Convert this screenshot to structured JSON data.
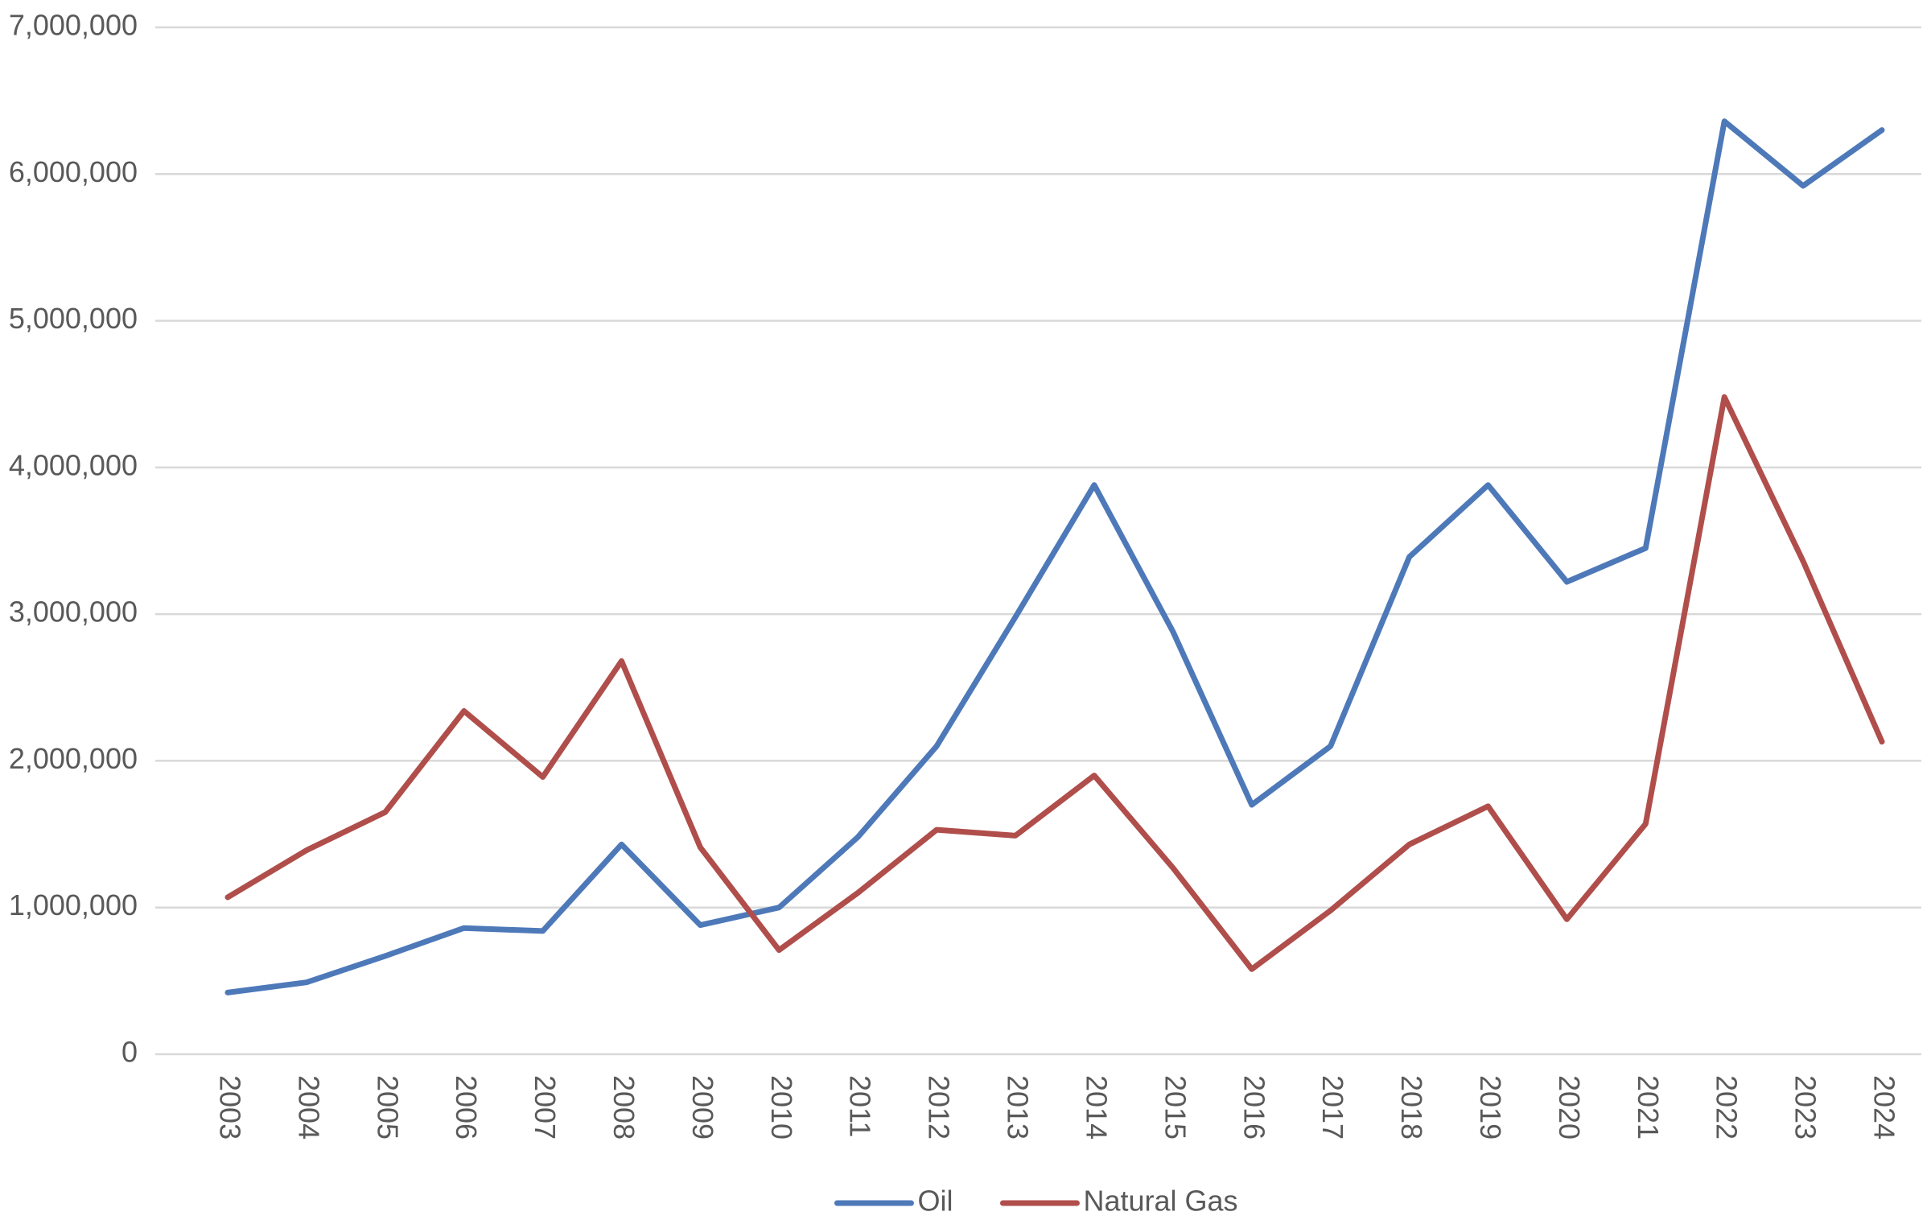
{
  "chart_data": {
    "type": "line",
    "categories": [
      "2003",
      "2004",
      "2005",
      "2006",
      "2007",
      "2008",
      "2009",
      "2010",
      "2011",
      "2012",
      "2013",
      "2014",
      "2015",
      "2016",
      "2017",
      "2018",
      "2019",
      "2020",
      "2021",
      "2022",
      "2023",
      "2024"
    ],
    "series": [
      {
        "name": "Oil",
        "color": "#4e79b9",
        "values": [
          420000,
          490000,
          670000,
          860000,
          840000,
          1430000,
          880000,
          1000000,
          1480000,
          2100000,
          2980000,
          3880000,
          2880000,
          1700000,
          2100000,
          3390000,
          3880000,
          3220000,
          3450000,
          6360000,
          5920000,
          6300000
        ]
      },
      {
        "name": "Natural Gas",
        "color": "#b04e4b",
        "values": [
          1070000,
          1390000,
          1650000,
          2340000,
          1890000,
          2680000,
          1410000,
          710000,
          1100000,
          1530000,
          1490000,
          1900000,
          1270000,
          580000,
          980000,
          1430000,
          1690000,
          920000,
          1570000,
          4480000,
          3360000,
          2130000
        ]
      }
    ],
    "ylim": [
      0,
      7000000
    ],
    "yticks": [
      0,
      {
        "value": 1000000,
        "label": "1,000,000"
      },
      {
        "value": 2000000,
        "label": "2,000,000"
      },
      {
        "value": 3000000,
        "label": "3,000,000"
      },
      {
        "value": 4000000,
        "label": "4,000,000"
      },
      {
        "value": 5000000,
        "label": "5,000,000"
      },
      {
        "value": 6000000,
        "label": "6,000,000"
      },
      {
        "value": 7000000,
        "label": "7,000,000"
      }
    ],
    "grid": true,
    "legend": "bottom"
  }
}
